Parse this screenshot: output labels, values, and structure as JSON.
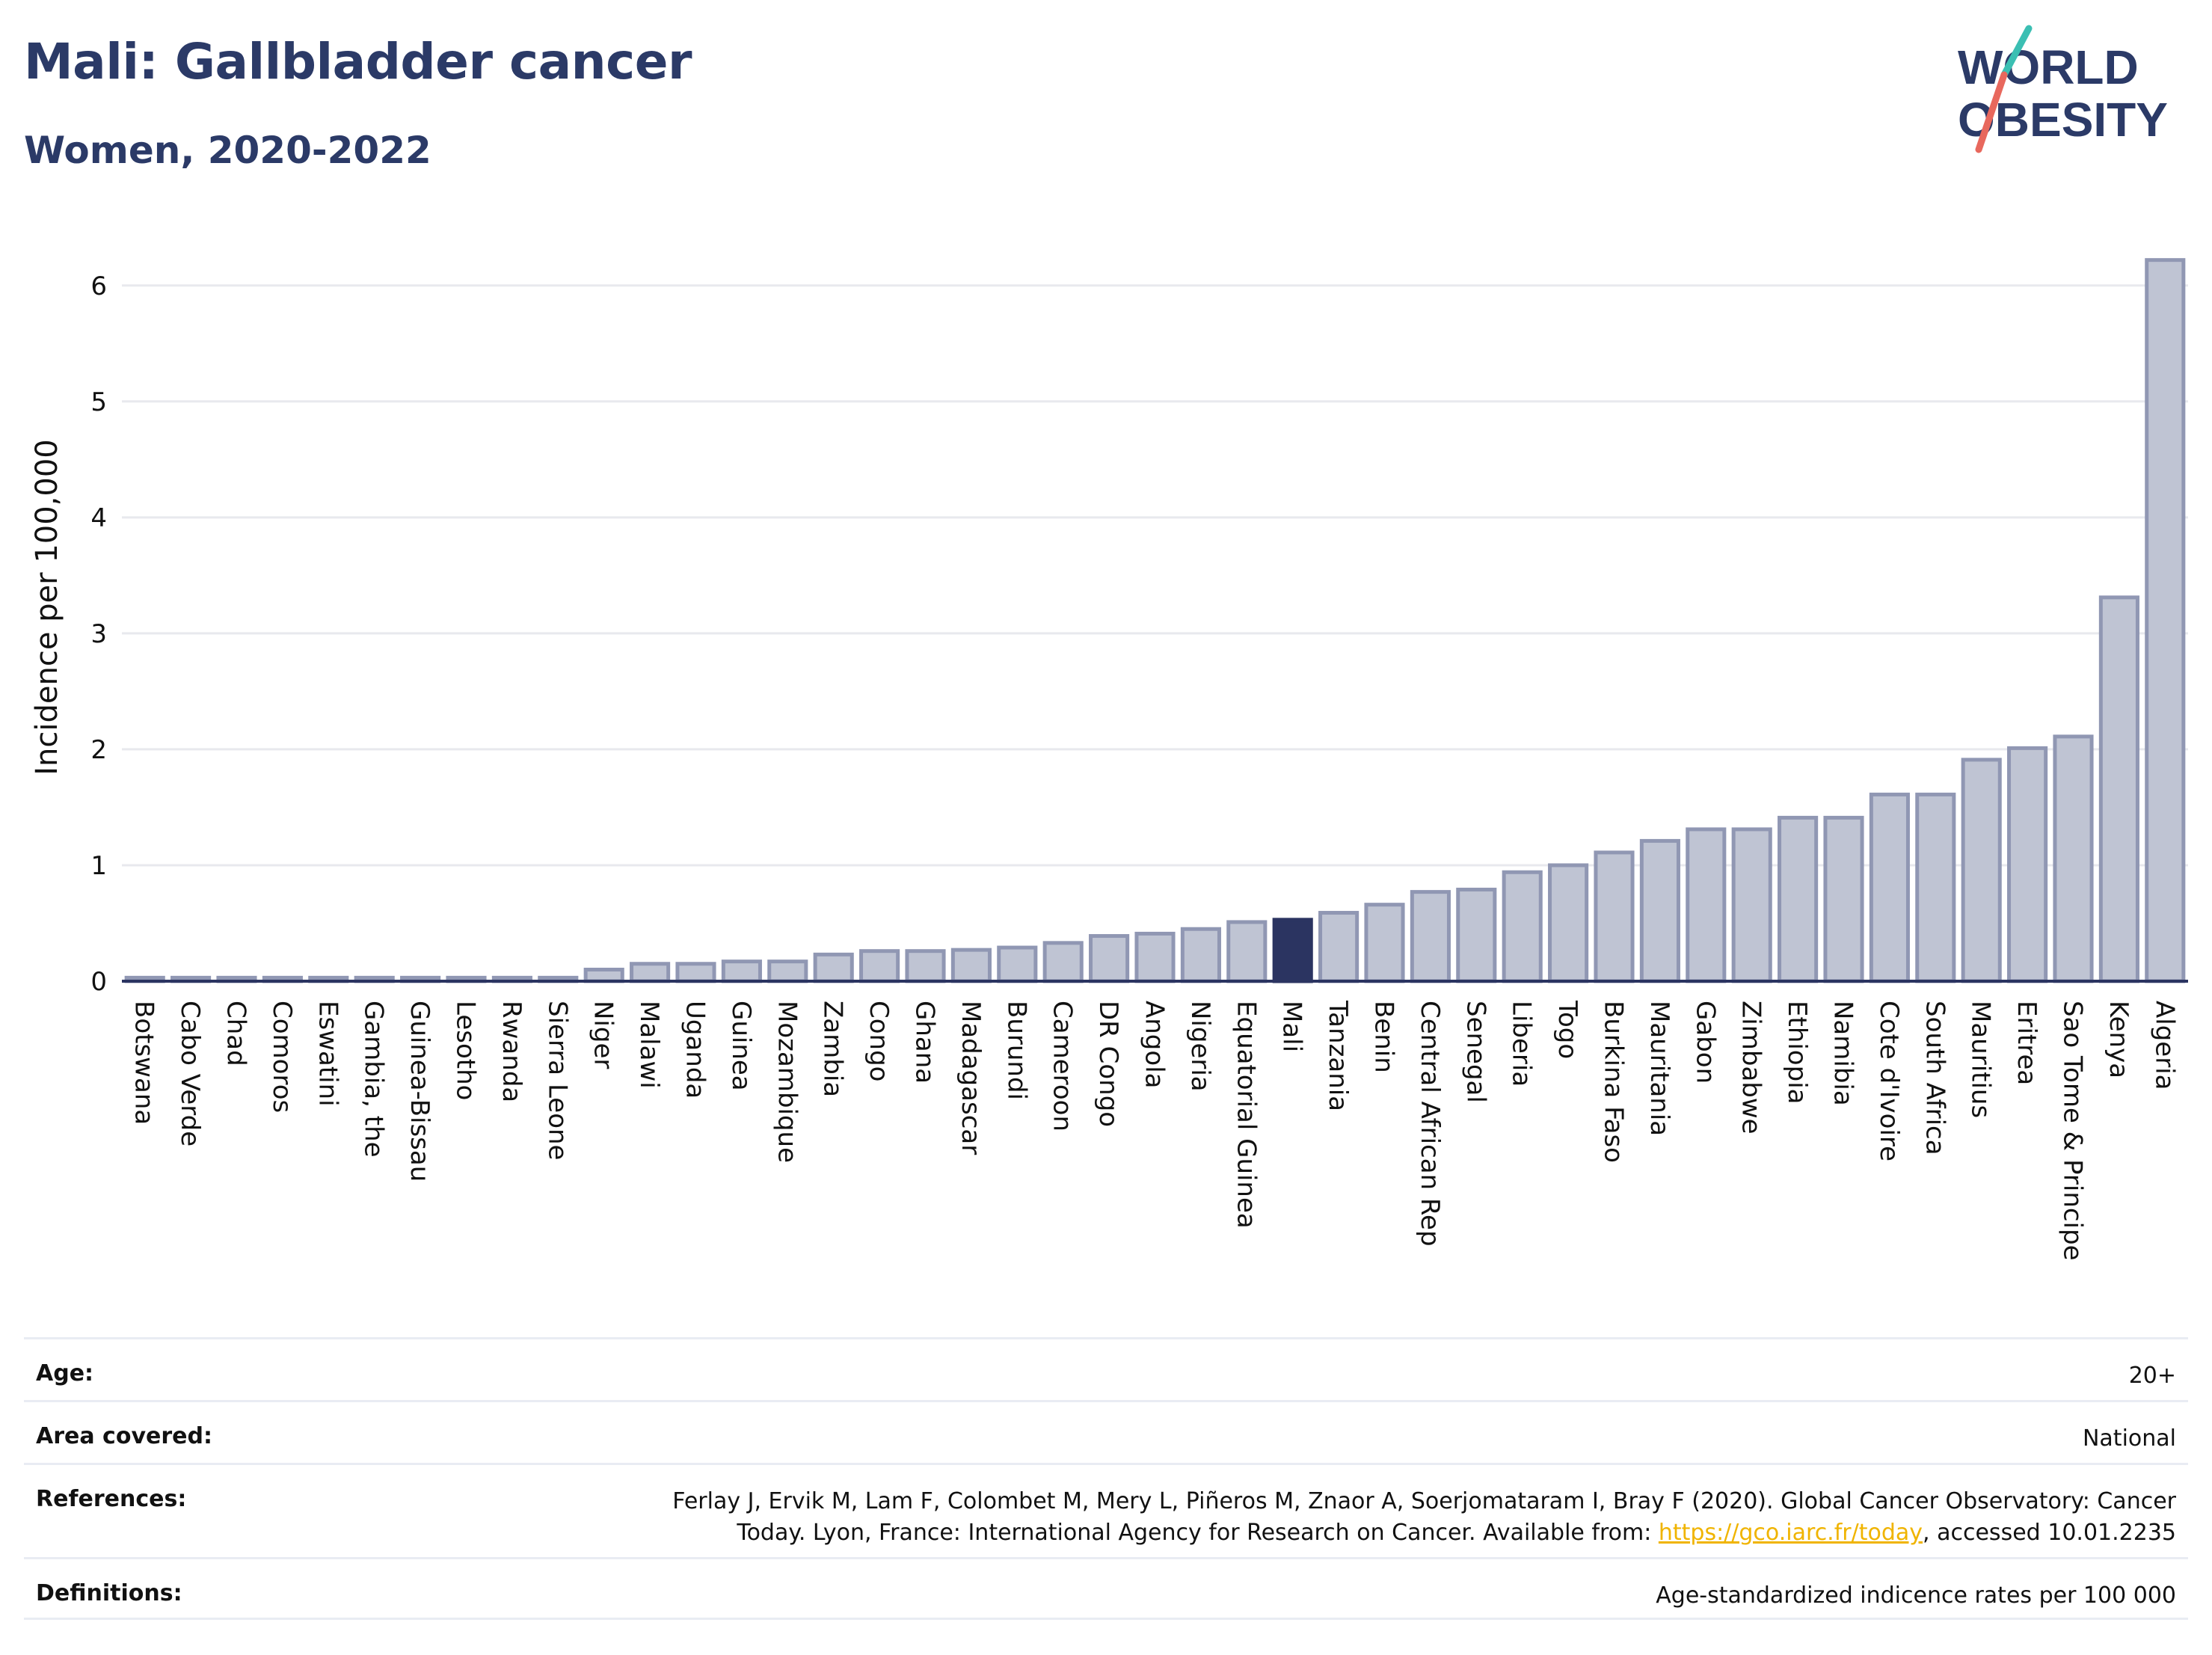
{
  "header": {
    "title": "Mali: Gallbladder cancer",
    "subtitle": "Women, 2020-2022"
  },
  "logo": {
    "line1": "WORLD",
    "line2": "OBESITY"
  },
  "colors": {
    "bar": "#bfc4d3",
    "bar_stroke": "#9097b3",
    "highlight": "#2b3461",
    "title": "#2b3a67",
    "link": "#f0b400"
  },
  "chart_data": {
    "type": "bar",
    "ylabel": "Incidence per 100,000",
    "ylim": [
      0,
      6.45
    ],
    "yticks": [
      0,
      1,
      2,
      3,
      4,
      5,
      6
    ],
    "grid": true,
    "highlight": "Mali",
    "categories": [
      "Botswana",
      "Cabo Verde",
      "Chad",
      "Comoros",
      "Eswatini",
      "Gambia, the",
      "Guinea-Bissau",
      "Lesotho",
      "Rwanda",
      "Sierra Leone",
      "Niger",
      "Malawi",
      "Uganda",
      "Guinea",
      "Mozambique",
      "Zambia",
      "Congo",
      "Ghana",
      "Madagascar",
      "Burundi",
      "Cameroon",
      "DR Congo",
      "Angola",
      "Nigeria",
      "Equatorial Guinea",
      "Mali",
      "Tanzania",
      "Benin",
      "Central African Rep",
      "Senegal",
      "Liberia",
      "Togo",
      "Burkina Faso",
      "Mauritania",
      "Gabon",
      "Zimbabwe",
      "Ethiopia",
      "Namibia",
      "Cote d'Ivoire",
      "South Africa",
      "Mauritius",
      "Eritrea",
      "Sao Tome & Principe",
      "Kenya",
      "Algeria"
    ],
    "values": [
      0.03,
      0.03,
      0.03,
      0.03,
      0.03,
      0.03,
      0.03,
      0.03,
      0.03,
      0.03,
      0.1,
      0.15,
      0.15,
      0.17,
      0.17,
      0.23,
      0.26,
      0.26,
      0.27,
      0.29,
      0.33,
      0.39,
      0.41,
      0.45,
      0.51,
      0.53,
      0.59,
      0.66,
      0.77,
      0.79,
      0.94,
      1.0,
      1.11,
      1.21,
      1.31,
      1.31,
      1.41,
      1.41,
      1.61,
      1.61,
      1.91,
      2.01,
      2.11,
      3.31,
      6.22
    ]
  },
  "meta": {
    "age_label": "Age:",
    "age_value": "20+",
    "area_label": "Area covered:",
    "area_value": "National",
    "ref_label": "References:",
    "ref_line1": "Ferlay J, Ervik M, Lam F, Colombet M, Mery L, Piñeros M, Znaor A, Soerjomataram I, Bray F (2020). Global Cancer Observatory: Cancer",
    "ref_line2_pre": "Today. Lyon, France: International Agency for Research on Cancer. Available from: ",
    "ref_link": "https://gco.iarc.fr/today",
    "ref_line2_post": ", accessed 10.01.2235",
    "def_label": "Definitions:",
    "def_value": "Age-standardized indicence rates per 100 000"
  }
}
